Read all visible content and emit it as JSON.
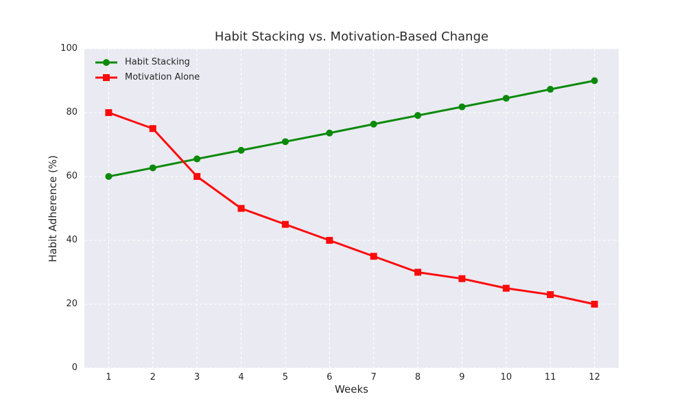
{
  "chart_data": {
    "type": "line",
    "title": "Habit Stacking vs. Motivation-Based Change",
    "xlabel": "Weeks",
    "ylabel": "Habit Adherence (%)",
    "categories": [
      1,
      2,
      3,
      4,
      5,
      6,
      7,
      8,
      9,
      10,
      11,
      12
    ],
    "x_tick_labels": [
      "1",
      "2",
      "3",
      "4",
      "5",
      "6",
      "7",
      "8",
      "9",
      "10",
      "11",
      "12"
    ],
    "y_ticks": [
      0,
      20,
      40,
      60,
      80,
      100
    ],
    "y_tick_labels": [
      "0",
      "20",
      "40",
      "60",
      "80",
      "100"
    ],
    "xlim": [
      0.45,
      12.55
    ],
    "ylim": [
      0,
      100
    ],
    "grid": true,
    "grid_style": "dashed",
    "legend_position": "upper left",
    "series": [
      {
        "name": "Habit Stacking",
        "marker": "circle",
        "color": "#0a8a0a",
        "values": [
          60,
          62.7,
          65.5,
          68.2,
          70.9,
          73.6,
          76.4,
          79.1,
          81.8,
          84.5,
          87.3,
          90
        ]
      },
      {
        "name": "Motivation Alone",
        "marker": "square",
        "color": "#fb0b0b",
        "values": [
          80,
          75,
          60,
          50,
          45,
          40,
          35,
          30,
          28,
          25,
          23,
          20
        ]
      }
    ],
    "colors": {
      "figure_background": "#ffffff",
      "plot_background": "#eaeaf2",
      "grid": "#ffffff",
      "text": "#262626"
    }
  }
}
